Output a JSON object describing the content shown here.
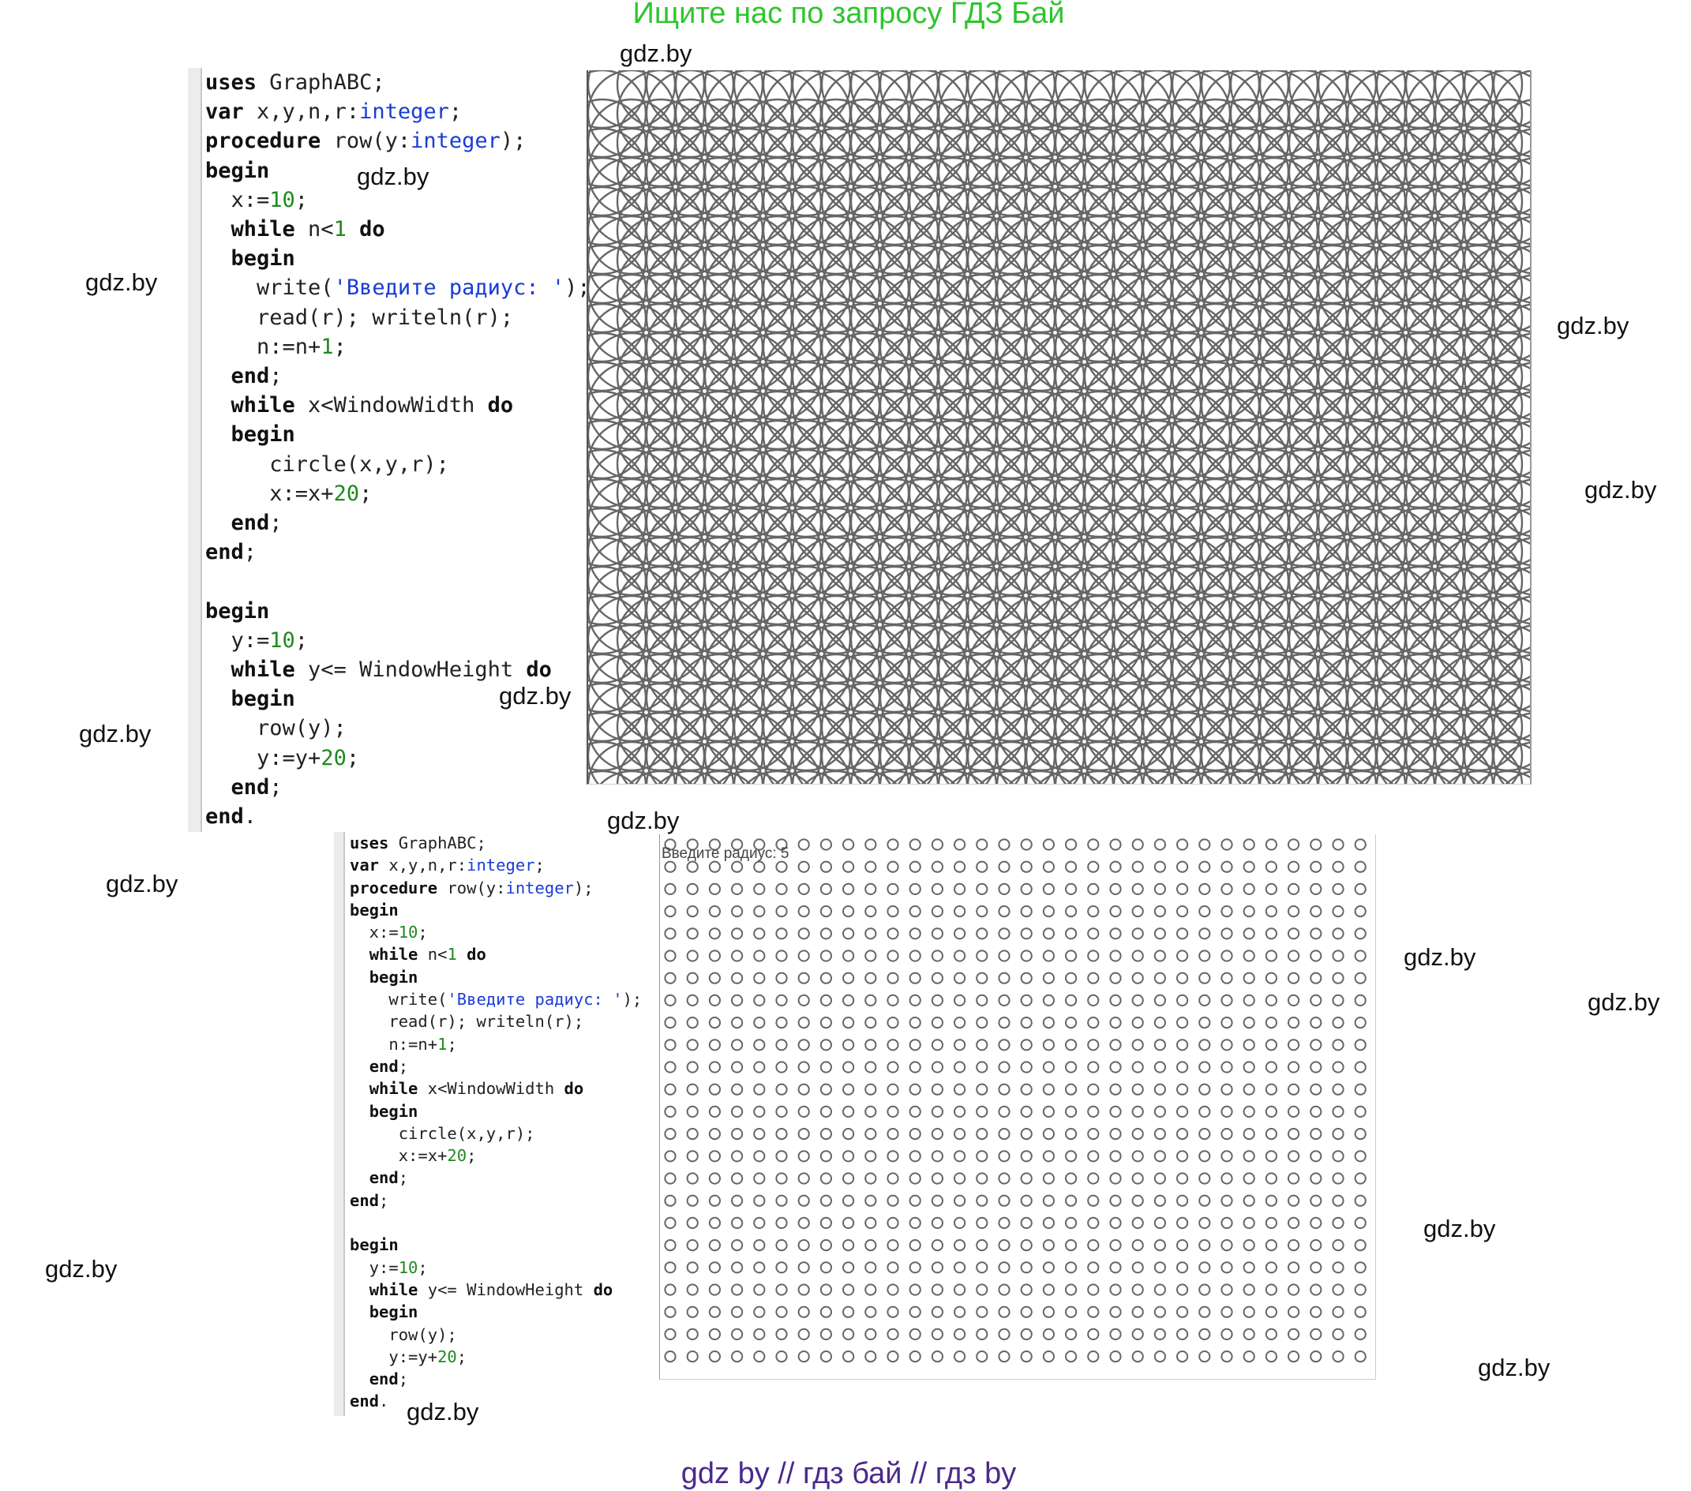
{
  "header": {
    "title": "Ищите нас по запросу ГДЗ Бай"
  },
  "footer": {
    "text": "gdz by  //  гдз бай  //  гдз by"
  },
  "watermark": "gdz.by",
  "code": [
    [
      [
        "uses",
        "kw"
      ],
      [
        " GraphABC;",
        ""
      ]
    ],
    [
      [
        "var",
        "kw"
      ],
      [
        " x,y,n,r:",
        ""
      ],
      [
        "integer",
        "ty"
      ],
      [
        ";",
        ""
      ]
    ],
    [
      [
        "procedure",
        "kw"
      ],
      [
        " row(y:",
        ""
      ],
      [
        "integer",
        "ty"
      ],
      [
        ");",
        ""
      ]
    ],
    [
      [
        "begin",
        "kw"
      ]
    ],
    [
      [
        "  x:=",
        ""
      ],
      [
        "10",
        "nu"
      ],
      [
        ";",
        ""
      ]
    ],
    [
      [
        "  ",
        ""
      ],
      [
        "while",
        "kw"
      ],
      [
        " n<",
        ""
      ],
      [
        "1",
        "nu"
      ],
      [
        " ",
        ""
      ],
      [
        "do",
        "kw"
      ]
    ],
    [
      [
        "  ",
        ""
      ],
      [
        "begin",
        "kw"
      ]
    ],
    [
      [
        "    write(",
        ""
      ],
      [
        "'Введите радиус: '",
        "st"
      ],
      [
        ");",
        ""
      ]
    ],
    [
      [
        "    read(r); writeln(r);",
        ""
      ]
    ],
    [
      [
        "    n:=n+",
        ""
      ],
      [
        "1",
        "nu"
      ],
      [
        ";",
        ""
      ]
    ],
    [
      [
        "  ",
        ""
      ],
      [
        "end",
        "kw"
      ],
      [
        ";",
        ""
      ]
    ],
    [
      [
        "  ",
        ""
      ],
      [
        "while",
        "kw"
      ],
      [
        " x<WindowWidth ",
        ""
      ],
      [
        "do",
        "kw"
      ]
    ],
    [
      [
        "  ",
        ""
      ],
      [
        "begin",
        "kw"
      ]
    ],
    [
      [
        "     circle(x,y,r);",
        ""
      ]
    ],
    [
      [
        "     x:=x+",
        ""
      ],
      [
        "20",
        "nu"
      ],
      [
        ";",
        ""
      ]
    ],
    [
      [
        "  ",
        ""
      ],
      [
        "end",
        "kw"
      ],
      [
        ";",
        ""
      ]
    ],
    [
      [
        "end",
        "kw"
      ],
      [
        ";",
        ""
      ]
    ],
    [
      [
        "",
        ""
      ]
    ],
    [
      [
        "begin",
        "kw"
      ]
    ],
    [
      [
        "  y:=",
        ""
      ],
      [
        "10",
        "nu"
      ],
      [
        ";",
        ""
      ]
    ],
    [
      [
        "  ",
        ""
      ],
      [
        "while",
        "kw"
      ],
      [
        " y<= WindowHeight ",
        ""
      ],
      [
        "do",
        "kw"
      ]
    ],
    [
      [
        "  ",
        ""
      ],
      [
        "begin",
        "kw"
      ]
    ],
    [
      [
        "    row(y);",
        ""
      ]
    ],
    [
      [
        "    y:=y+",
        ""
      ],
      [
        "20",
        "nu"
      ],
      [
        ";",
        ""
      ]
    ],
    [
      [
        "  ",
        ""
      ],
      [
        "end",
        "kw"
      ],
      [
        ";",
        ""
      ]
    ],
    [
      [
        "end",
        "kw"
      ],
      [
        ".",
        ""
      ]
    ]
  ],
  "output_bottom": {
    "prompt": "Введите радиус: 5"
  },
  "colors": {
    "title": "#2ec52e",
    "footer": "#4a2a8c",
    "circle_stroke": "#666666",
    "keyword": "#111111",
    "type": "#1a3cd6",
    "number": "#1f8a1f"
  }
}
